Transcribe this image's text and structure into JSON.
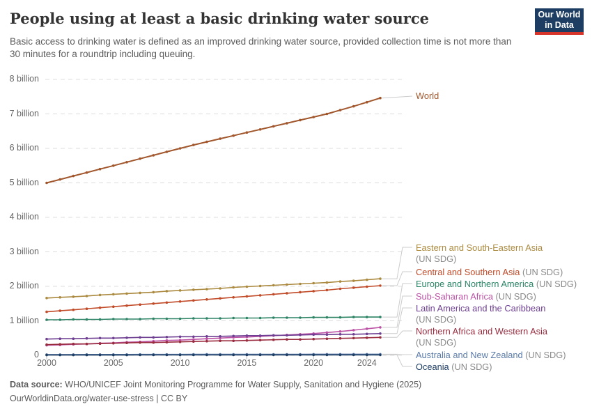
{
  "header": {
    "title": "People using at least a basic drinking water source",
    "subtitle": "Basic access to drinking water is defined as an improved drinking water source, provided collection time is not more than 30 minutes for a roundtrip including queuing.",
    "logo": {
      "line1": "Our World",
      "line2": "in Data",
      "bg": "#1d3d63",
      "accent": "#d8352a"
    }
  },
  "footer": {
    "datasource_label": "Data source:",
    "datasource_text": " WHO/UNICEF Joint Monitoring Programme for Water Supply, Sanitation and Hygiene (2025)",
    "link_line": "OurWorldinData.org/water-use-stress | CC BY"
  },
  "chart_data": {
    "type": "line",
    "unit": "people",
    "x_range": [
      2000,
      2025
    ],
    "ylim_billions": [
      0,
      8
    ],
    "grid": "dashed-horizontal",
    "legend_position": "right",
    "x": [
      2000,
      2001,
      2002,
      2003,
      2004,
      2005,
      2006,
      2007,
      2008,
      2009,
      2010,
      2011,
      2012,
      2013,
      2014,
      2015,
      2016,
      2017,
      2018,
      2019,
      2020,
      2021,
      2022,
      2023,
      2024,
      2025
    ],
    "x_ticks": [
      2000,
      2005,
      2010,
      2015,
      2020,
      2024
    ],
    "y_ticks": [
      {
        "label": "0",
        "value": 0
      },
      {
        "label": "1 billion",
        "value": 1
      },
      {
        "label": "2 billion",
        "value": 2
      },
      {
        "label": "3 billion",
        "value": 3
      },
      {
        "label": "4 billion",
        "value": 4
      },
      {
        "label": "5 billion",
        "value": 5
      },
      {
        "label": "6 billion",
        "value": 6
      },
      {
        "label": "7 billion",
        "value": 7
      },
      {
        "label": "8 billion",
        "value": 8
      }
    ],
    "series": [
      {
        "name": "World",
        "suffix": "",
        "color": "#a1562c",
        "values_billions": [
          5.0,
          5.1,
          5.2,
          5.3,
          5.4,
          5.5,
          5.6,
          5.7,
          5.8,
          5.9,
          6.0,
          6.1,
          6.19,
          6.28,
          6.37,
          6.46,
          6.55,
          6.64,
          6.73,
          6.82,
          6.91,
          7.0,
          7.11,
          7.22,
          7.34,
          7.46
        ]
      },
      {
        "name": "Eastern and South-Eastern Asia",
        "suffix": "(UN SDG)",
        "color": "#ab8a3f",
        "values_billions": [
          1.66,
          1.68,
          1.7,
          1.72,
          1.75,
          1.77,
          1.79,
          1.81,
          1.83,
          1.86,
          1.88,
          1.9,
          1.92,
          1.94,
          1.97,
          1.99,
          2.01,
          2.03,
          2.05,
          2.07,
          2.09,
          2.11,
          2.14,
          2.16,
          2.19,
          2.22
        ]
      },
      {
        "name": "Central and Southern Asia",
        "suffix": "(UN SDG)",
        "color": "#c14a28",
        "values_billions": [
          1.26,
          1.29,
          1.32,
          1.35,
          1.38,
          1.41,
          1.44,
          1.47,
          1.5,
          1.53,
          1.56,
          1.59,
          1.62,
          1.65,
          1.68,
          1.71,
          1.74,
          1.77,
          1.8,
          1.83,
          1.86,
          1.89,
          1.93,
          1.96,
          1.99,
          2.02
        ]
      },
      {
        "name": "Europe and Northern America",
        "suffix": "(UN SDG)",
        "color": "#2c8465",
        "values_billions": [
          1.03,
          1.03,
          1.04,
          1.04,
          1.04,
          1.05,
          1.05,
          1.05,
          1.06,
          1.06,
          1.06,
          1.07,
          1.07,
          1.07,
          1.08,
          1.08,
          1.08,
          1.09,
          1.09,
          1.09,
          1.1,
          1.1,
          1.1,
          1.11,
          1.11,
          1.11
        ]
      },
      {
        "name": "Sub-Saharan Africa",
        "suffix": "(UN SDG)",
        "color": "#bc52a5",
        "values_billions": [
          0.29,
          0.3,
          0.32,
          0.33,
          0.35,
          0.36,
          0.38,
          0.39,
          0.41,
          0.43,
          0.44,
          0.46,
          0.48,
          0.5,
          0.52,
          0.53,
          0.55,
          0.57,
          0.59,
          0.61,
          0.63,
          0.66,
          0.69,
          0.73,
          0.77,
          0.81
        ]
      },
      {
        "name": "Latin America and the Caribbean",
        "suffix": "(UN SDG)",
        "color": "#6d3e91",
        "values_billions": [
          0.47,
          0.48,
          0.48,
          0.49,
          0.5,
          0.5,
          0.51,
          0.52,
          0.52,
          0.53,
          0.54,
          0.54,
          0.55,
          0.55,
          0.56,
          0.57,
          0.57,
          0.58,
          0.58,
          0.59,
          0.6,
          0.6,
          0.61,
          0.61,
          0.62,
          0.63
        ]
      },
      {
        "name": "Northern Africa and Western Asia",
        "suffix": "(UN SDG)",
        "color": "#9a2c3f",
        "values_billions": [
          0.31,
          0.32,
          0.33,
          0.33,
          0.34,
          0.35,
          0.36,
          0.37,
          0.37,
          0.38,
          0.39,
          0.4,
          0.41,
          0.42,
          0.42,
          0.43,
          0.44,
          0.45,
          0.46,
          0.46,
          0.47,
          0.48,
          0.49,
          0.5,
          0.51,
          0.52
        ]
      },
      {
        "name": "Australia and New Zealand",
        "suffix": "(UN SDG)",
        "color": "#5b7ba8",
        "values_billions": [
          0.022,
          0.023,
          0.023,
          0.024,
          0.024,
          0.025,
          0.025,
          0.026,
          0.026,
          0.027,
          0.027,
          0.028,
          0.028,
          0.029,
          0.029,
          0.03,
          0.03,
          0.03,
          0.031,
          0.031,
          0.032,
          0.032,
          0.032,
          0.033,
          0.033,
          0.033
        ]
      },
      {
        "name": "Oceania",
        "suffix": "(UN SDG)",
        "color": "#1d3d63",
        "values_billions": [
          0.008,
          0.008,
          0.008,
          0.009,
          0.009,
          0.009,
          0.009,
          0.01,
          0.01,
          0.01,
          0.01,
          0.01,
          0.011,
          0.011,
          0.011,
          0.011,
          0.011,
          0.012,
          0.012,
          0.012,
          0.012,
          0.012,
          0.013,
          0.013,
          0.013,
          0.013
        ]
      }
    ]
  }
}
